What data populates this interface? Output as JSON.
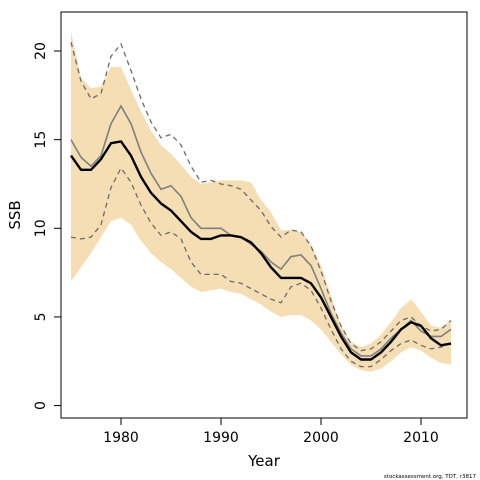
{
  "chart_data": {
    "type": "line",
    "title": "",
    "xlabel": "Year",
    "ylabel": "SSB",
    "xlim": [
      1974.0,
      2014.6
    ],
    "ylim": [
      -0.7,
      22.2
    ],
    "x_ticks": [
      1980,
      1990,
      2000,
      2010
    ],
    "y_ticks": [
      0,
      5,
      10,
      15,
      20
    ],
    "grid": false,
    "legend": "none",
    "credit": "stockassessment.org, TDT, r3817",
    "colors": {
      "band": "#f5deb3",
      "main_line": "#000000",
      "alt_line": "#7f7f7f",
      "dashed": "#6b6b6b"
    },
    "x": [
      1975,
      1976,
      1977,
      1978,
      1979,
      1980,
      1981,
      1982,
      1983,
      1984,
      1985,
      1986,
      1987,
      1988,
      1989,
      1990,
      1991,
      1992,
      1993,
      1994,
      1995,
      1996,
      1997,
      1998,
      1999,
      2000,
      2001,
      2002,
      2003,
      2004,
      2005,
      2006,
      2007,
      2008,
      2009,
      2010,
      2011,
      2012,
      2013
    ],
    "series": [
      {
        "role": "confidence-band-upper",
        "values": [
          21.1,
          18.5,
          17.9,
          18.0,
          19.1,
          19.1,
          17.8,
          16.6,
          15.5,
          14.7,
          14.2,
          13.6,
          12.9,
          12.5,
          12.6,
          12.7,
          12.7,
          12.7,
          12.6,
          11.6,
          10.9,
          9.9,
          9.9,
          9.8,
          9.1,
          7.9,
          6.2,
          4.5,
          3.6,
          3.3,
          3.5,
          4.0,
          4.7,
          5.5,
          6.0,
          5.3,
          4.5,
          4.4,
          4.8
        ]
      },
      {
        "role": "confidence-band-lower",
        "values": [
          7.0,
          7.8,
          8.6,
          9.5,
          10.4,
          10.6,
          10.2,
          9.3,
          8.6,
          8.1,
          7.7,
          7.2,
          6.7,
          6.4,
          6.5,
          6.6,
          6.4,
          6.3,
          6.0,
          5.7,
          5.3,
          5.0,
          5.1,
          5.1,
          4.8,
          4.3,
          3.6,
          2.9,
          2.3,
          2.0,
          1.9,
          2.1,
          2.5,
          3.0,
          3.3,
          3.1,
          2.7,
          2.4,
          2.3
        ]
      },
      {
        "role": "estimate",
        "values": [
          14.1,
          13.3,
          13.3,
          13.9,
          14.8,
          14.9,
          14.1,
          12.9,
          12.0,
          11.4,
          11.0,
          10.4,
          9.8,
          9.4,
          9.4,
          9.6,
          9.6,
          9.5,
          9.2,
          8.6,
          7.8,
          7.2,
          7.2,
          7.2,
          6.9,
          6.1,
          5.0,
          3.9,
          3.0,
          2.6,
          2.6,
          3.0,
          3.6,
          4.3,
          4.7,
          4.5,
          3.8,
          3.4,
          3.5
        ]
      },
      {
        "role": "alternative-estimate",
        "values": [
          15.0,
          14.0,
          13.5,
          14.1,
          15.9,
          16.9,
          15.9,
          14.3,
          13.1,
          12.2,
          12.4,
          11.8,
          10.6,
          10.0,
          10.0,
          10.0,
          9.6,
          9.5,
          9.1,
          8.7,
          8.1,
          7.7,
          8.4,
          8.5,
          7.9,
          6.6,
          5.2,
          4.1,
          3.2,
          2.8,
          2.8,
          3.2,
          3.8,
          4.3,
          4.8,
          4.2,
          3.9,
          3.9,
          4.3
        ]
      },
      {
        "role": "alternative-upper",
        "values": [
          20.5,
          18.3,
          17.3,
          17.6,
          19.7,
          20.4,
          18.9,
          17.3,
          16.0,
          15.1,
          15.3,
          14.7,
          13.5,
          12.6,
          12.7,
          12.5,
          12.4,
          12.2,
          11.6,
          11.0,
          10.1,
          9.5,
          9.9,
          9.8,
          9.0,
          7.6,
          5.9,
          4.5,
          3.5,
          3.1,
          3.2,
          3.6,
          4.2,
          4.8,
          5.0,
          4.5,
          4.2,
          4.3,
          4.8
        ]
      },
      {
        "role": "alternative-lower",
        "values": [
          9.5,
          9.4,
          9.5,
          10.2,
          12.3,
          13.4,
          12.6,
          11.3,
          10.3,
          9.6,
          9.8,
          9.4,
          8.1,
          7.4,
          7.4,
          7.4,
          7.0,
          6.9,
          6.6,
          6.3,
          6.0,
          5.8,
          6.7,
          6.9,
          6.5,
          5.5,
          4.3,
          3.2,
          2.5,
          2.2,
          2.2,
          2.6,
          3.1,
          3.5,
          3.7,
          3.4,
          3.2,
          3.3,
          3.5
        ]
      }
    ]
  }
}
